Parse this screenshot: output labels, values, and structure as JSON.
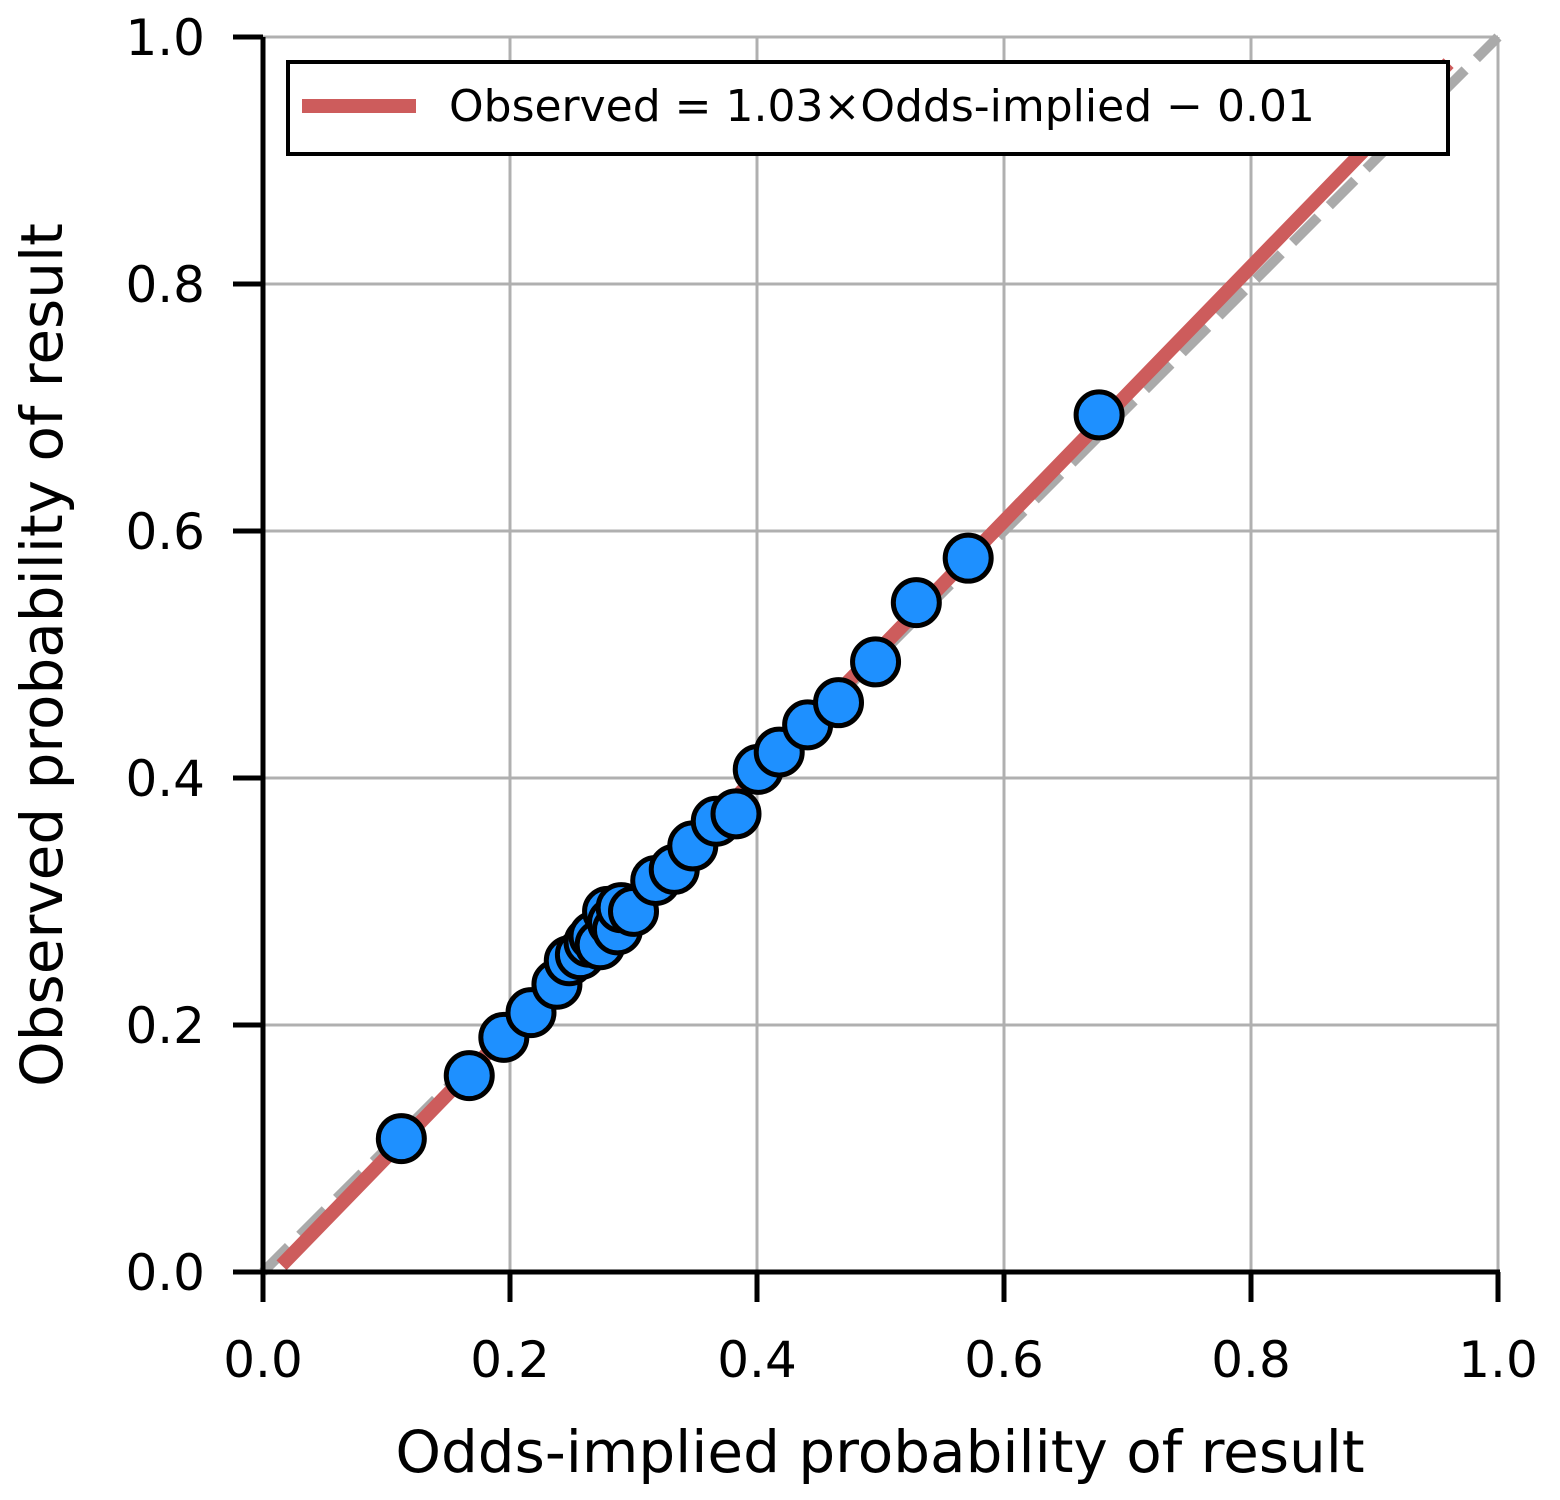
{
  "chart_data": {
    "type": "scatter",
    "xlabel": "Odds-implied probability of result",
    "ylabel": "Observed probability of result",
    "xlim": [
      0.0,
      1.0
    ],
    "ylim": [
      0.0,
      1.0
    ],
    "x_ticks": [
      "0.0",
      "0.2",
      "0.4",
      "0.6",
      "0.8",
      "1.0"
    ],
    "y_ticks": [
      "0.0",
      "0.2",
      "0.4",
      "0.6",
      "0.8",
      "1.0"
    ],
    "grid": true,
    "legend": {
      "position": "top-left",
      "entries": [
        {
          "label": "Observed = 1.03×Odds-implied − 0.01",
          "color": "#cd5c5c",
          "type": "line"
        }
      ]
    },
    "reference_line": {
      "x": [
        0,
        1
      ],
      "y": [
        0,
        1
      ],
      "style": "dashed",
      "color": "#aaaaaa"
    },
    "fit_line": {
      "slope": 1.03,
      "intercept": -0.01,
      "x_start": 0.015,
      "x_end": 0.96,
      "color": "#cd5c5c"
    },
    "marker_color": "#1e90ff",
    "points": [
      {
        "x": 0.112,
        "y": 0.108
      },
      {
        "x": 0.167,
        "y": 0.159
      },
      {
        "x": 0.195,
        "y": 0.19
      },
      {
        "x": 0.217,
        "y": 0.21
      },
      {
        "x": 0.238,
        "y": 0.233
      },
      {
        "x": 0.248,
        "y": 0.252
      },
      {
        "x": 0.257,
        "y": 0.257
      },
      {
        "x": 0.264,
        "y": 0.267
      },
      {
        "x": 0.268,
        "y": 0.272
      },
      {
        "x": 0.273,
        "y": 0.265
      },
      {
        "x": 0.279,
        "y": 0.292
      },
      {
        "x": 0.283,
        "y": 0.283
      },
      {
        "x": 0.287,
        "y": 0.277
      },
      {
        "x": 0.29,
        "y": 0.295
      },
      {
        "x": 0.3,
        "y": 0.292
      },
      {
        "x": 0.318,
        "y": 0.317
      },
      {
        "x": 0.333,
        "y": 0.326
      },
      {
        "x": 0.348,
        "y": 0.345
      },
      {
        "x": 0.367,
        "y": 0.365
      },
      {
        "x": 0.383,
        "y": 0.371
      },
      {
        "x": 0.401,
        "y": 0.407
      },
      {
        "x": 0.418,
        "y": 0.421
      },
      {
        "x": 0.441,
        "y": 0.443
      },
      {
        "x": 0.466,
        "y": 0.461
      },
      {
        "x": 0.496,
        "y": 0.494
      },
      {
        "x": 0.529,
        "y": 0.542
      },
      {
        "x": 0.571,
        "y": 0.578
      },
      {
        "x": 0.677,
        "y": 0.694
      }
    ]
  }
}
